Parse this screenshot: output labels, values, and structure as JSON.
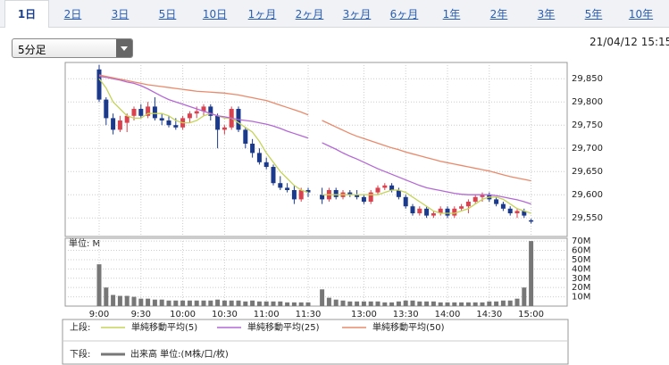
{
  "tabs": [
    "1日",
    "2日",
    "3日",
    "5日",
    "10日",
    "1ヶ月",
    "2ヶ月",
    "3ヶ月",
    "6ヶ月",
    "1年",
    "2年",
    "3年",
    "5年",
    "10年"
  ],
  "dropdown": "5分足",
  "timestamp": "21/04/12 15:15",
  "legend": {
    "upper": "上段:",
    "lower": "下段:"
  },
  "chart_data": [
    {
      "type": "candlestick",
      "up_color": "#d9434f",
      "down_color": "#1c3a8c",
      "open": [
        29870,
        29805,
        29765,
        29740,
        29755,
        29770,
        29785,
        29770,
        29790,
        29765,
        29760,
        29750,
        29745,
        29765,
        29775,
        29780,
        29790,
        29770,
        29740,
        29745,
        29785,
        29740,
        29710,
        29690,
        29670,
        29660,
        29625,
        29615,
        29610,
        29590,
        29610,
        null,
        29600,
        29590,
        29610,
        29595,
        29605,
        29600,
        29595,
        29585,
        29605,
        29615,
        29620,
        29610,
        29595,
        29575,
        29560,
        29570,
        29555,
        29560,
        29570,
        29555,
        29570,
        29575,
        29585,
        29595,
        29600,
        29590,
        29580,
        29570,
        29560,
        29565,
        29545
      ],
      "high": [
        29880,
        29810,
        29775,
        29770,
        29775,
        29790,
        29795,
        29800,
        29810,
        29775,
        29770,
        29765,
        29770,
        29780,
        29790,
        29795,
        29795,
        29775,
        29750,
        29790,
        29790,
        29745,
        29720,
        29700,
        29680,
        29665,
        29640,
        29625,
        29620,
        29615,
        29615,
        null,
        29615,
        29615,
        29615,
        29610,
        29610,
        29610,
        29600,
        29610,
        29620,
        29625,
        29625,
        29615,
        29600,
        29580,
        29575,
        29575,
        29565,
        29575,
        29575,
        29575,
        29580,
        29590,
        29600,
        29605,
        29605,
        29595,
        29585,
        29575,
        29570,
        29570,
        29548
      ],
      "low": [
        29800,
        29750,
        29730,
        29735,
        29735,
        29760,
        29765,
        29765,
        29760,
        29750,
        29745,
        29740,
        29740,
        29755,
        29765,
        29770,
        29760,
        29700,
        29730,
        29740,
        29735,
        29700,
        29680,
        29665,
        29655,
        29620,
        29610,
        29605,
        29580,
        29585,
        29595,
        null,
        29580,
        29585,
        29590,
        29590,
        29595,
        29590,
        29580,
        29580,
        29600,
        29610,
        29605,
        29590,
        29570,
        29555,
        29555,
        29550,
        29550,
        29555,
        29550,
        29550,
        29565,
        29560,
        29580,
        29585,
        29585,
        29575,
        29565,
        29555,
        29550,
        29550,
        29538
      ],
      "close": [
        29805,
        29765,
        29740,
        29760,
        29770,
        29785,
        29770,
        29790,
        29765,
        29760,
        29750,
        29745,
        29765,
        29775,
        29780,
        29790,
        29770,
        29740,
        29745,
        29785,
        29740,
        29710,
        29690,
        29670,
        29660,
        29625,
        29615,
        29610,
        29590,
        29610,
        29605,
        null,
        29590,
        29610,
        29595,
        29605,
        29600,
        29595,
        29585,
        29605,
        29615,
        29620,
        29610,
        29595,
        29575,
        29560,
        29570,
        29555,
        29560,
        29570,
        29555,
        29570,
        29575,
        29585,
        29595,
        29600,
        29590,
        29580,
        29570,
        29560,
        29565,
        29555,
        29542
      ],
      "series": [
        {
          "name": "単純移動平均(5)",
          "color": "#c5d45a",
          "values": [
            29850,
            29830,
            29800,
            29785,
            29770,
            29765,
            29765,
            29775,
            29775,
            29775,
            29770,
            29760,
            29755,
            29755,
            29760,
            29770,
            29775,
            29770,
            29765,
            29765,
            29755,
            29745,
            29735,
            29715,
            29690,
            29670,
            29650,
            29635,
            29620,
            29610,
            29605,
            null,
            29600,
            29600,
            29600,
            29600,
            29600,
            29600,
            29600,
            29600,
            29600,
            29605,
            29610,
            29610,
            29605,
            29595,
            29585,
            29575,
            29565,
            29560,
            29560,
            29560,
            29565,
            29570,
            29580,
            29590,
            29595,
            29595,
            29590,
            29580,
            29570,
            29565,
            29560
          ]
        },
        {
          "name": "単純移動平均(25)",
          "color": "#b468d6",
          "values": [
            29855,
            29853,
            29850,
            29847,
            29843,
            29840,
            29835,
            29828,
            29820,
            29812,
            29805,
            29800,
            29795,
            29790,
            29785,
            29780,
            29775,
            29770,
            29768,
            29765,
            29762,
            29760,
            29758,
            29755,
            29752,
            29748,
            29743,
            29737,
            29732,
            29727,
            29722,
            null,
            29712,
            29705,
            29698,
            29690,
            29683,
            29677,
            29670,
            29663,
            29656,
            29650,
            29644,
            29638,
            29632,
            29626,
            29620,
            29615,
            29612,
            29609,
            29606,
            29603,
            29601,
            29600,
            29600,
            29600,
            29600,
            29598,
            29595,
            29592,
            29589,
            29585,
            29580
          ]
        },
        {
          "name": "単純移動平均(50)",
          "color": "#e98a6c",
          "values": [
            29858,
            29855,
            29852,
            29849,
            29846,
            29843,
            29840,
            29837,
            29835,
            29833,
            29831,
            29829,
            29827,
            29825,
            29823,
            29822,
            29821,
            29820,
            29819,
            29817,
            29815,
            29812,
            29809,
            29806,
            29803,
            29798,
            29793,
            29788,
            29783,
            29778,
            29772,
            null,
            29760,
            29753,
            29746,
            29739,
            29732,
            29726,
            29721,
            29716,
            29711,
            29706,
            29701,
            29697,
            29692,
            29688,
            29684,
            29680,
            29676,
            29672,
            29669,
            29666,
            29663,
            29660,
            29657,
            29654,
            29651,
            29647,
            29643,
            29639,
            29636,
            29633,
            29630
          ]
        }
      ],
      "ylim": [
        29510,
        29885
      ],
      "yticks": [
        {
          "value": 29550,
          "label": "29,550"
        },
        {
          "value": 29600,
          "label": "29,600"
        },
        {
          "value": 29650,
          "label": "29,650"
        },
        {
          "value": 29700,
          "label": "29,700"
        },
        {
          "value": 29750,
          "label": "29,750"
        },
        {
          "value": 29800,
          "label": "29,800"
        },
        {
          "value": 29850,
          "label": "29,850"
        }
      ],
      "grid": true
    },
    {
      "type": "bar",
      "unit_label": "単位: M",
      "categories": [
        "9:00",
        null,
        null,
        null,
        null,
        null,
        "9:30",
        null,
        null,
        null,
        null,
        null,
        "10:00",
        null,
        null,
        null,
        null,
        null,
        "10:30",
        null,
        null,
        null,
        null,
        null,
        "11:00",
        null,
        null,
        null,
        null,
        null,
        "11:30",
        null,
        null,
        null,
        null,
        null,
        null,
        null,
        "13:00",
        null,
        null,
        null,
        null,
        null,
        "13:30",
        null,
        null,
        null,
        null,
        null,
        "14:00",
        null,
        null,
        null,
        null,
        null,
        "14:30",
        null,
        null,
        null,
        null,
        null,
        "15:00"
      ],
      "series": [
        {
          "name": "出来高 単位:(M株/口/枚)",
          "color": "#777777",
          "values": [
            45,
            20,
            12,
            11,
            11,
            10,
            8,
            8,
            7,
            7,
            6,
            6,
            6,
            6,
            6,
            6,
            6,
            7,
            6,
            6,
            6,
            5,
            6,
            5,
            5,
            5,
            5,
            4,
            4,
            4,
            4,
            null,
            18,
            9,
            7,
            6,
            5,
            5,
            5,
            5,
            5,
            4,
            4,
            5,
            6,
            6,
            5,
            5,
            5,
            4,
            4,
            4,
            4,
            4,
            4,
            4,
            5,
            5,
            6,
            6,
            8,
            20,
            70
          ]
        }
      ],
      "ylim": [
        0,
        73
      ],
      "yticks": [
        {
          "value": 10,
          "label": "10M"
        },
        {
          "value": 20,
          "label": "20M"
        },
        {
          "value": 30,
          "label": "30M"
        },
        {
          "value": 40,
          "label": "40M"
        },
        {
          "value": 50,
          "label": "50M"
        },
        {
          "value": 60,
          "label": "60M"
        },
        {
          "value": 70,
          "label": "70M"
        }
      ],
      "grid": true
    }
  ]
}
